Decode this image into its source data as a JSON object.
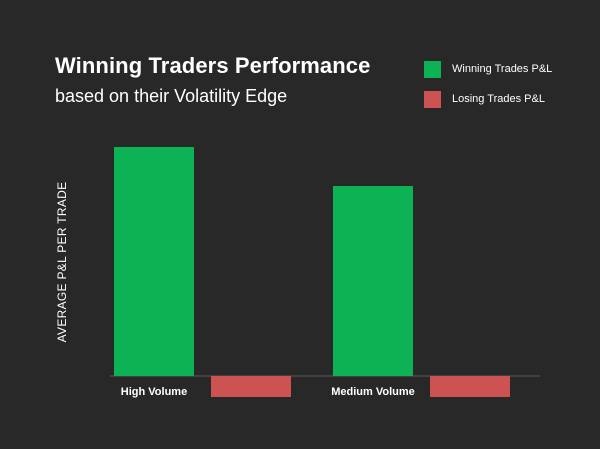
{
  "chart_data": {
    "type": "bar",
    "title": "Winning Traders Performance",
    "subtitle": "based on their Volatility Edge",
    "xlabel": "",
    "ylabel": "AVERAGE P&L PER TRADE",
    "categories": [
      "High Volume",
      "Medium Volume"
    ],
    "series": [
      {
        "name": "Winning Trades P&L",
        "color": "#0db255",
        "values": [
          229,
          190
        ]
      },
      {
        "name": "Losing Trades P&L",
        "color": "#cd5252",
        "values": [
          -21,
          -21
        ]
      }
    ],
    "ylim": [
      -30,
      240
    ],
    "grid": false,
    "legend_position": "top-right",
    "background": "#282828",
    "baseline_color": "#5a5a5a"
  }
}
